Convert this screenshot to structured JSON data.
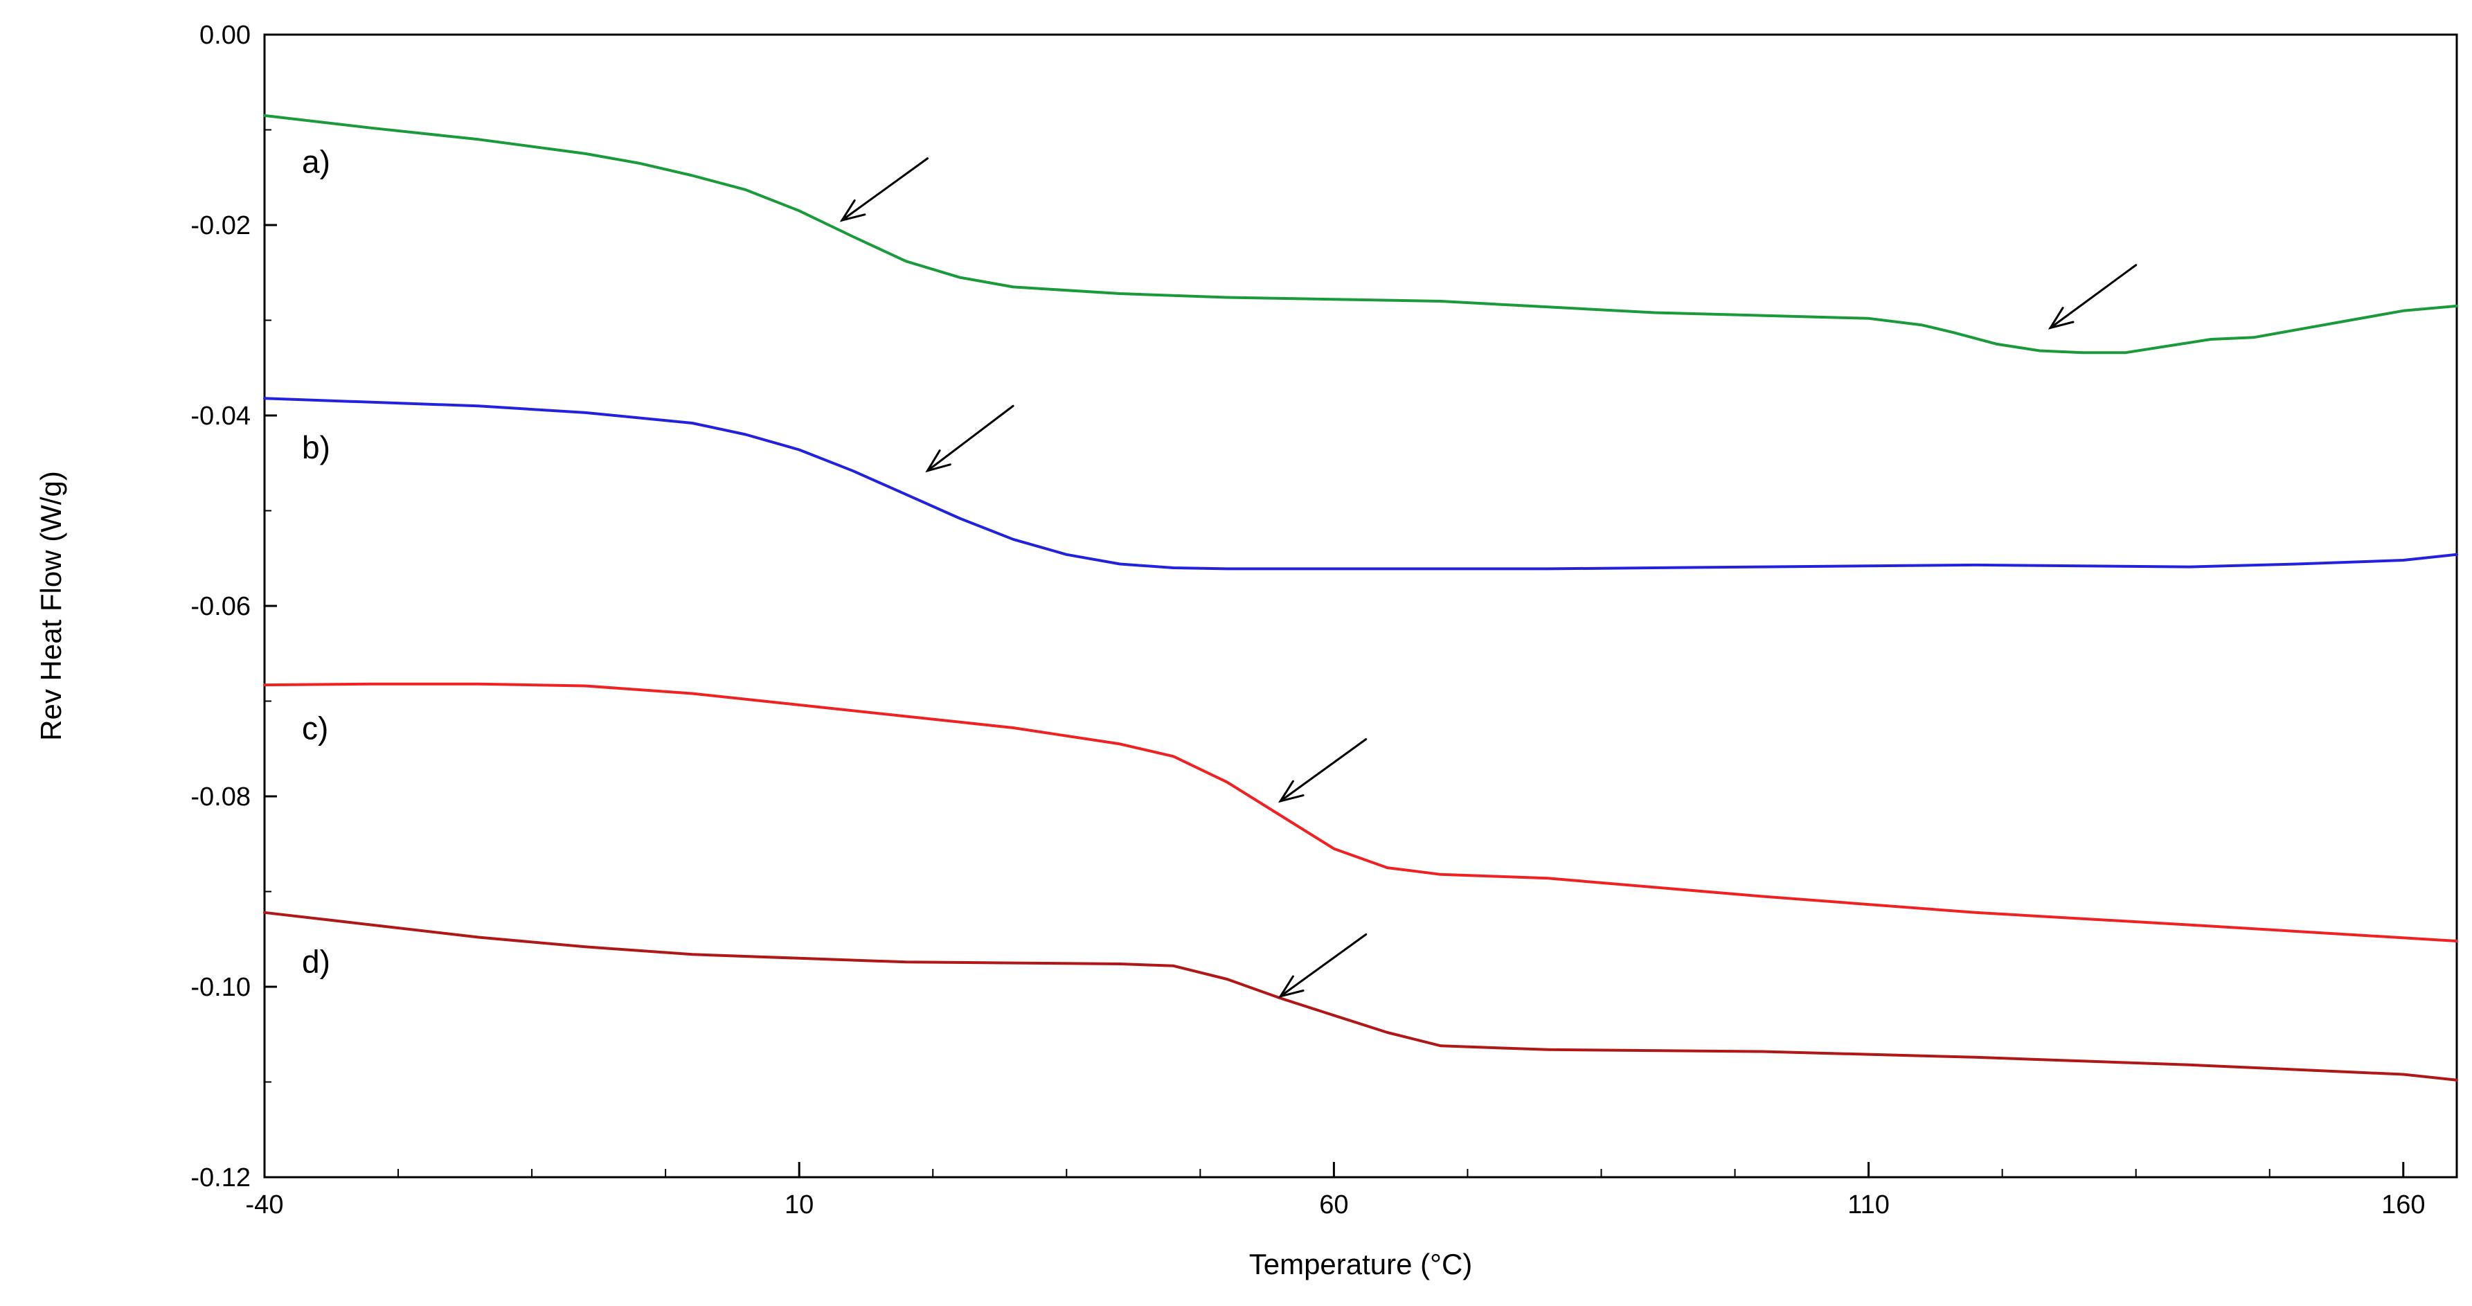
{
  "chart_data": {
    "type": "line",
    "title": "",
    "xlabel": "Temperature (°C)",
    "ylabel": "Rev Heat Flow (W/g)",
    "xlim": [
      -40,
      165
    ],
    "ylim": [
      -0.12,
      0.0
    ],
    "x_major_ticks": [
      -40,
      10,
      60,
      110,
      160
    ],
    "x_minor_step": 12.5,
    "y_major_ticks": [
      0.0,
      -0.02,
      -0.04,
      -0.06,
      -0.08,
      -0.1,
      -0.12
    ],
    "x_tick_labels": [
      "-40",
      "10",
      "60",
      "110",
      "160"
    ],
    "y_tick_labels": [
      "0.00",
      "-0.02",
      "-0.04",
      "-0.06",
      "-0.08",
      "-0.10",
      "-0.12"
    ],
    "grid": false,
    "legend": "none",
    "series": [
      {
        "name": "a)",
        "color": "#1a9a3a",
        "x": [
          -40,
          -30,
          -20,
          -10,
          -5,
          0,
          5,
          10,
          15,
          20,
          25,
          30,
          40,
          50,
          60,
          70,
          80,
          90,
          100,
          110,
          115,
          118,
          122,
          126,
          130,
          134,
          138,
          142,
          146,
          150,
          155,
          160,
          165
        ],
        "y": [
          -0.0085,
          -0.0098,
          -0.011,
          -0.0125,
          -0.0135,
          -0.0148,
          -0.0163,
          -0.0185,
          -0.0212,
          -0.0238,
          -0.0255,
          -0.0265,
          -0.0272,
          -0.0276,
          -0.0278,
          -0.028,
          -0.0286,
          -0.0292,
          -0.0295,
          -0.0298,
          -0.0305,
          -0.0313,
          -0.0325,
          -0.0332,
          -0.0334,
          -0.0334,
          -0.0327,
          -0.032,
          -0.0318,
          -0.031,
          -0.03,
          -0.029,
          -0.0285
        ]
      },
      {
        "name": "b)",
        "color": "#2222dd",
        "x": [
          -40,
          -30,
          -20,
          -10,
          0,
          5,
          10,
          15,
          20,
          25,
          30,
          35,
          40,
          45,
          50,
          60,
          80,
          100,
          120,
          140,
          150,
          160,
          165
        ],
        "y": [
          -0.0382,
          -0.0386,
          -0.039,
          -0.0397,
          -0.0408,
          -0.042,
          -0.0436,
          -0.0458,
          -0.0483,
          -0.0508,
          -0.053,
          -0.0546,
          -0.0556,
          -0.056,
          -0.0561,
          -0.0561,
          -0.0561,
          -0.0559,
          -0.0557,
          -0.0559,
          -0.0556,
          -0.0552,
          -0.0546
        ]
      },
      {
        "name": "c)",
        "color": "#ee2222",
        "x": [
          -40,
          -30,
          -20,
          -10,
          0,
          10,
          20,
          30,
          40,
          45,
          50,
          55,
          60,
          65,
          70,
          75,
          80,
          100,
          120,
          140,
          165
        ],
        "y": [
          -0.0683,
          -0.0682,
          -0.0682,
          -0.0684,
          -0.0692,
          -0.0704,
          -0.0716,
          -0.0728,
          -0.0745,
          -0.0758,
          -0.0785,
          -0.082,
          -0.0855,
          -0.0875,
          -0.0882,
          -0.0884,
          -0.0886,
          -0.0905,
          -0.0922,
          -0.0935,
          -0.0952
        ]
      },
      {
        "name": "d)",
        "color": "#b01818",
        "x": [
          -40,
          -30,
          -20,
          -10,
          0,
          10,
          20,
          30,
          40,
          45,
          50,
          55,
          60,
          65,
          70,
          80,
          100,
          120,
          140,
          160,
          165
        ],
        "y": [
          -0.0922,
          -0.0935,
          -0.0948,
          -0.0958,
          -0.0966,
          -0.097,
          -0.0974,
          -0.0975,
          -0.0976,
          -0.0978,
          -0.0992,
          -0.1012,
          -0.103,
          -0.1048,
          -0.1062,
          -0.1066,
          -0.1068,
          -0.1074,
          -0.1082,
          -0.1092,
          -0.1098
        ]
      }
    ],
    "curve_labels": [
      {
        "text": "a)",
        "series": "a)",
        "x": -36.5,
        "y": -0.0145
      },
      {
        "text": "b)",
        "series": "b)",
        "x": -36.5,
        "y": -0.0445
      },
      {
        "text": "c)",
        "series": "c)",
        "x": -36.5,
        "y": -0.074
      },
      {
        "text": "d)",
        "series": "d)",
        "x": -36.5,
        "y": -0.0985
      }
    ],
    "annotations": [
      {
        "type": "arrow",
        "from": [
          22,
          -0.013
        ],
        "to": [
          14,
          -0.0195
        ]
      },
      {
        "type": "arrow",
        "from": [
          30,
          -0.039
        ],
        "to": [
          22,
          -0.0458
        ]
      },
      {
        "type": "arrow",
        "from": [
          63,
          -0.074
        ],
        "to": [
          55,
          -0.0805
        ]
      },
      {
        "type": "arrow",
        "from": [
          63,
          -0.0945
        ],
        "to": [
          55,
          -0.101
        ]
      },
      {
        "type": "arrow",
        "from": [
          135,
          -0.0242
        ],
        "to": [
          127,
          -0.0308
        ]
      }
    ]
  }
}
